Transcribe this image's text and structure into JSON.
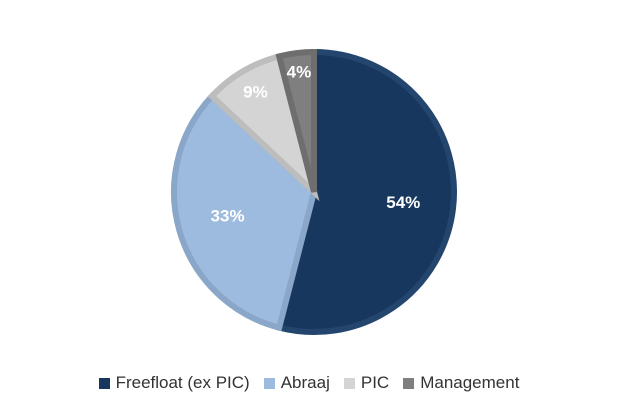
{
  "chart_data": {
    "type": "pie",
    "categories": [
      "Freefloat (ex PIC)",
      "Abraaj",
      "PIC",
      "Management"
    ],
    "values": [
      54,
      33,
      9,
      4
    ],
    "labels": [
      "54%",
      "33%",
      "9%",
      "4%"
    ],
    "colors": [
      "#17375e",
      "#9dbbdf",
      "#d4d4d4",
      "#7f7f7f"
    ],
    "border_colors": [
      "#24466e",
      "#8aa6c8",
      "#bdbdbd",
      "#6e6e6e"
    ],
    "start_angle_deg": 0,
    "direction": "clockwise",
    "legend": "bottom"
  }
}
